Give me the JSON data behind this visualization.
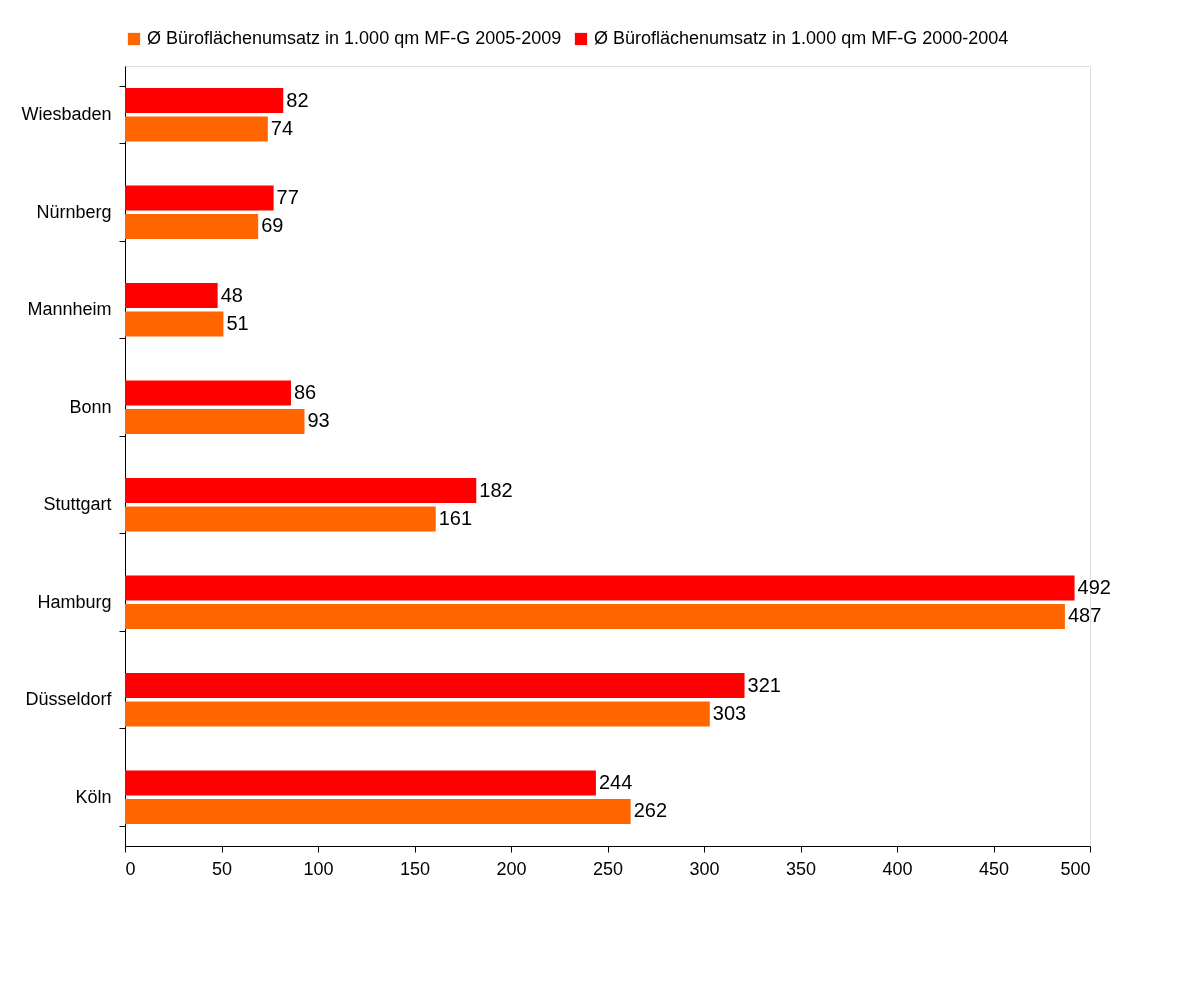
{
  "chart_data": {
    "type": "bar",
    "orientation": "horizontal",
    "categories": [
      "Wiesbaden",
      "Nürnberg",
      "Mannheim",
      "Bonn",
      "Stuttgart",
      "Hamburg",
      "Düsseldorf",
      "Köln"
    ],
    "series": [
      {
        "name": "Ø Büroflächenumsatz in 1.000 qm MF-G 2005-2009",
        "color": "#ff6600",
        "values": [
          74,
          69,
          51,
          93,
          161,
          487,
          303,
          262
        ]
      },
      {
        "name": "Ø Büroflächenumsatz in 1.000 qm MF-G 2000-2004",
        "color": "#ff0000",
        "values": [
          82,
          77,
          48,
          86,
          182,
          492,
          321,
          244
        ]
      }
    ],
    "xlim": [
      0,
      500
    ],
    "xticks": [
      0,
      50,
      100,
      150,
      200,
      250,
      300,
      350,
      400,
      450,
      500
    ],
    "data_labels": true,
    "legend": "top",
    "grid": false
  }
}
